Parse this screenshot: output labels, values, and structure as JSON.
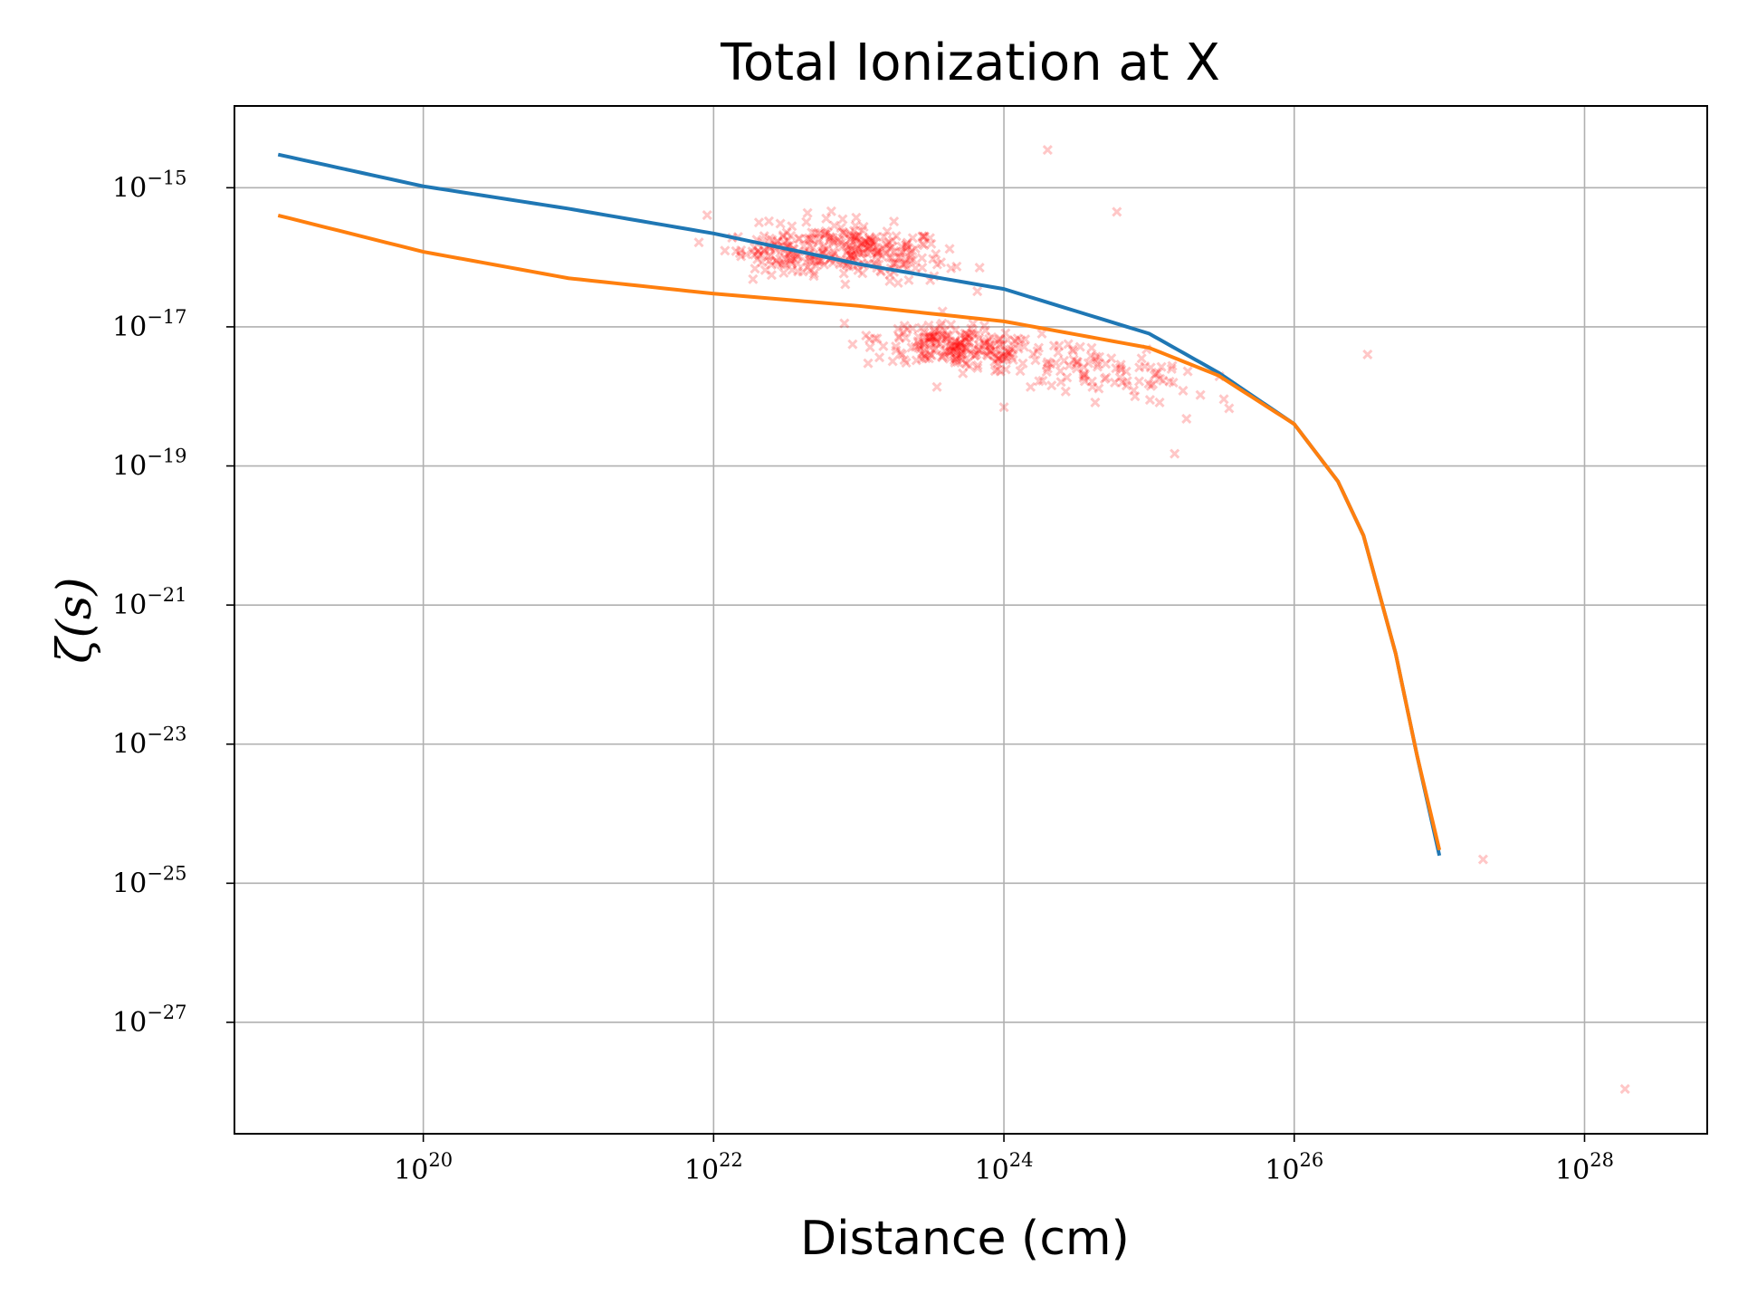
{
  "chart_data": {
    "type": "line",
    "title": "Total Ionization at X",
    "xlabel": "Distance (cm)",
    "ylabel": "ζ(s)",
    "x_scale": "log",
    "y_scale": "log",
    "xlim": [
      5e+18,
      7e+28
    ],
    "ylim": [
      2.5e-29,
      1.5e-14
    ],
    "x_ticks": [
      {
        "value": 1e+20,
        "base": "10",
        "exp": "20"
      },
      {
        "value": 1e+22,
        "base": "10",
        "exp": "22"
      },
      {
        "value": 1e+24,
        "base": "10",
        "exp": "24"
      },
      {
        "value": 1e+26,
        "base": "10",
        "exp": "26"
      },
      {
        "value": 1e+28,
        "base": "10",
        "exp": "28"
      }
    ],
    "y_ticks": [
      {
        "value": 1e-15,
        "base": "10",
        "exp": "−15"
      },
      {
        "value": 1e-17,
        "base": "10",
        "exp": "−17"
      },
      {
        "value": 1e-19,
        "base": "10",
        "exp": "−19"
      },
      {
        "value": 1e-21,
        "base": "10",
        "exp": "−21"
      },
      {
        "value": 1e-23,
        "base": "10",
        "exp": "−23"
      },
      {
        "value": 1e-25,
        "base": "10",
        "exp": "−25"
      },
      {
        "value": 1e-27,
        "base": "10",
        "exp": "−27"
      }
    ],
    "grid": true,
    "series": [
      {
        "color": "#1f77b4",
        "points": [
          [
            1e+19,
            3e-15
          ],
          [
            1e+20,
            1.05e-15
          ],
          [
            1e+21,
            5e-16
          ],
          [
            1e+22,
            2.2e-16
          ],
          [
            1e+23,
            8e-17
          ],
          [
            1e+24,
            3.5e-17
          ],
          [
            1e+25,
            8e-18
          ],
          [
            3e+25,
            2.2e-18
          ],
          [
            1e+26,
            4e-19
          ],
          [
            2e+26,
            6e-20
          ],
          [
            3e+26,
            1e-20
          ],
          [
            5e+26,
            2e-22
          ],
          [
            7e+26,
            7e-24
          ],
          [
            1e+27,
            2.5e-25
          ]
        ]
      },
      {
        "color": "#ff7f0e",
        "points": [
          [
            1e+19,
            4e-16
          ],
          [
            1e+20,
            1.2e-16
          ],
          [
            1e+21,
            5e-17
          ],
          [
            1e+22,
            3e-17
          ],
          [
            1e+23,
            2e-17
          ],
          [
            1e+24,
            1.2e-17
          ],
          [
            1e+25,
            5e-18
          ],
          [
            3e+25,
            2e-18
          ],
          [
            1e+26,
            4e-19
          ],
          [
            2e+26,
            6e-20
          ],
          [
            3e+26,
            1e-20
          ],
          [
            5e+26,
            2e-22
          ],
          [
            7e+26,
            7e-24
          ],
          [
            1e+27,
            3e-25
          ]
        ]
      }
    ],
    "scatter": {
      "color": "#ff0000",
      "marker": "x",
      "outliers": [
        [
          2e+24,
          3.5e-15
        ],
        [
          6e+24,
          4.5e-16
        ],
        [
          3.2e+26,
          4e-18
        ],
        [
          2e+27,
          2.2e-25
        ],
        [
          1.9e+28,
          1.1e-28
        ],
        [
          3e+24,
          4.5e-18
        ],
        [
          1e+24,
          7e-19
        ],
        [
          1.5e+25,
          1.5e-19
        ],
        [
          8e+24,
          1e-18
        ]
      ],
      "clusters": [
        {
          "cx": 1e+23,
          "cy": 1.3e-16,
          "sx": 0.3,
          "sy": 0.2,
          "n": 230
        },
        {
          "cx": 3e+22,
          "cy": 1.1e-16,
          "sx": 0.2,
          "sy": 0.12,
          "n": 80
        },
        {
          "cx": 5e+23,
          "cy": 5e-18,
          "sx": 0.28,
          "sy": 0.15,
          "n": 220
        },
        {
          "cx": 3e+24,
          "cy": 2.5e-18,
          "sx": 0.25,
          "sy": 0.2,
          "n": 60
        },
        {
          "cx": 1.2e+25,
          "cy": 1.5e-18,
          "sx": 0.25,
          "sy": 0.25,
          "n": 30
        }
      ]
    }
  }
}
